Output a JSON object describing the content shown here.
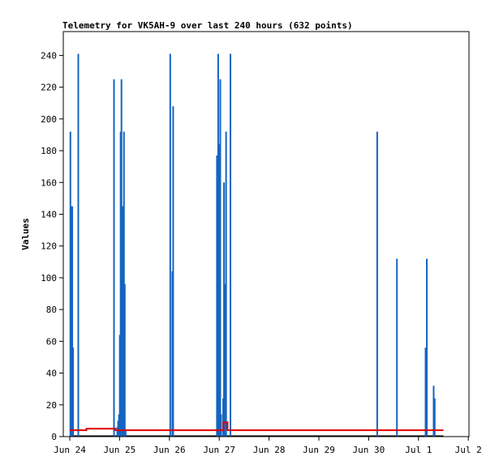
{
  "chart_data": {
    "type": "bar",
    "title": "Telemetry for VK5AH-9 over last 240 hours (632 points)",
    "xlabel": "",
    "ylabel": "Values",
    "ylim": [
      0,
      255
    ],
    "yticks": [
      0,
      20,
      40,
      60,
      80,
      100,
      120,
      140,
      160,
      180,
      200,
      220,
      240
    ],
    "xlim_hours": [
      0,
      240
    ],
    "xticks": [
      {
        "label": "Jun 24",
        "hour": 0
      },
      {
        "label": "Jun 25",
        "hour": 24
      },
      {
        "label": "Jun 26",
        "hour": 48
      },
      {
        "label": "Jun 27",
        "hour": 72
      },
      {
        "label": "Jun 28",
        "hour": 96
      },
      {
        "label": "Jun 29",
        "hour": 120
      },
      {
        "label": "Jun 30",
        "hour": 144
      },
      {
        "label": "Jul 1",
        "hour": 168
      },
      {
        "label": "Jul 2",
        "hour": 192
      }
    ],
    "colors": {
      "bars": "#1565c0",
      "line": "#e00000",
      "frame": "#000000"
    },
    "series": [
      {
        "type": "bar",
        "x": [
          0.3,
          0.8,
          1.2,
          1.6,
          4.1,
          21.3,
          22.9,
          23.3,
          23.7,
          24.1,
          24.5,
          24.9,
          25.3,
          25.7,
          26.1,
          26.5,
          26.9,
          48.4,
          49.4,
          49.8,
          70.9,
          71.5,
          72.1,
          72.5,
          72.9,
          73.9,
          74.3,
          74.7,
          75.3,
          77.4,
          148.1,
          157.6,
          171.4,
          172.0,
          175.3,
          175.8
        ],
        "values": [
          192,
          145,
          145,
          56,
          241,
          225,
          6,
          10,
          14,
          64,
          192,
          225,
          145,
          145,
          192,
          96,
          4,
          241,
          104,
          208,
          177,
          241,
          184,
          225,
          14,
          24,
          160,
          96,
          192,
          241,
          192,
          112,
          56,
          112,
          32,
          24
        ]
      },
      {
        "type": "line",
        "x": [
          0,
          7,
          8,
          17,
          18,
          21,
          22,
          26,
          27,
          73,
          74,
          75,
          76,
          180
        ],
        "values": [
          4,
          4,
          5,
          5,
          5,
          5,
          4,
          4,
          4,
          4,
          9,
          9,
          4,
          4
        ]
      }
    ]
  }
}
